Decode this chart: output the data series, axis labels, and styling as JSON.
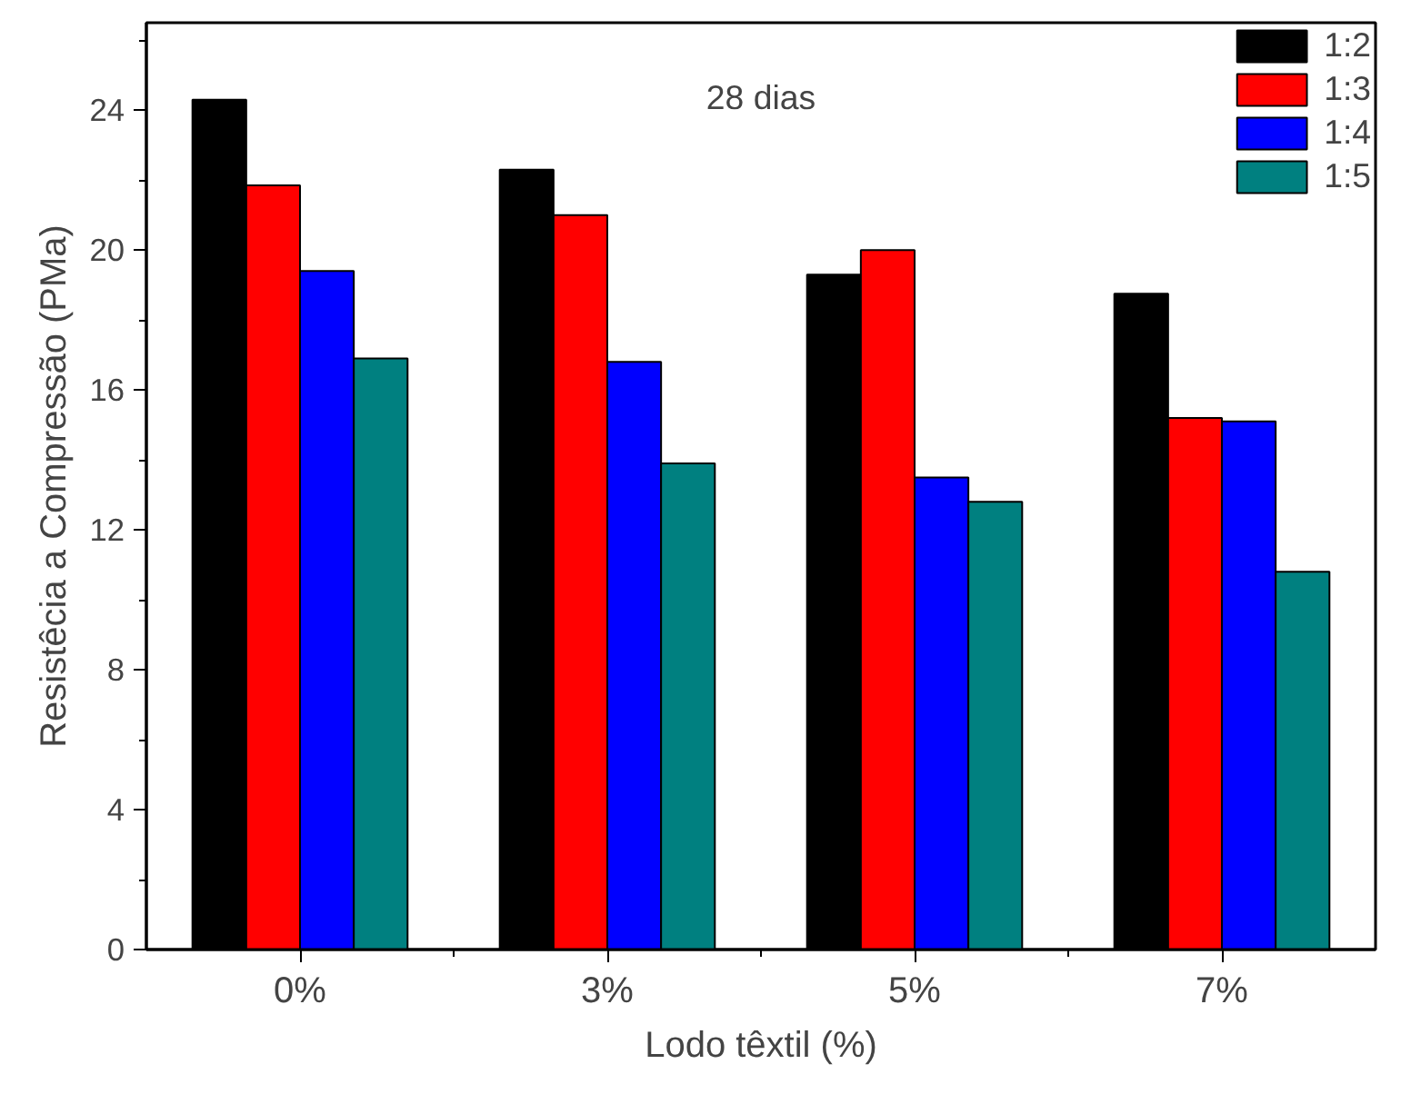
{
  "chart_data": {
    "type": "bar",
    "xlabel": "Lodo têxtil (%)",
    "ylabel": "Resistêcia a Compressão (PMa)",
    "categories": [
      "0%",
      "3%",
      "5%",
      "7%"
    ],
    "series": [
      {
        "name": "1:2",
        "color": "#000000",
        "values": [
          24.3,
          22.3,
          19.3,
          18.75
        ]
      },
      {
        "name": "1:3",
        "color": "#ff0000",
        "values": [
          21.85,
          21.0,
          20.0,
          15.2
        ]
      },
      {
        "name": "1:4",
        "color": "#0000ff",
        "values": [
          19.4,
          16.8,
          13.5,
          15.1
        ]
      },
      {
        "name": "1:5",
        "color": "#008080",
        "values": [
          16.9,
          13.9,
          12.8,
          10.8
        ]
      }
    ],
    "annotations": [
      "28 dias"
    ],
    "ylim": [
      0,
      26.5
    ],
    "yticks": [
      0,
      4,
      8,
      12,
      16,
      20,
      24
    ],
    "grid": false,
    "legend": "top right"
  }
}
